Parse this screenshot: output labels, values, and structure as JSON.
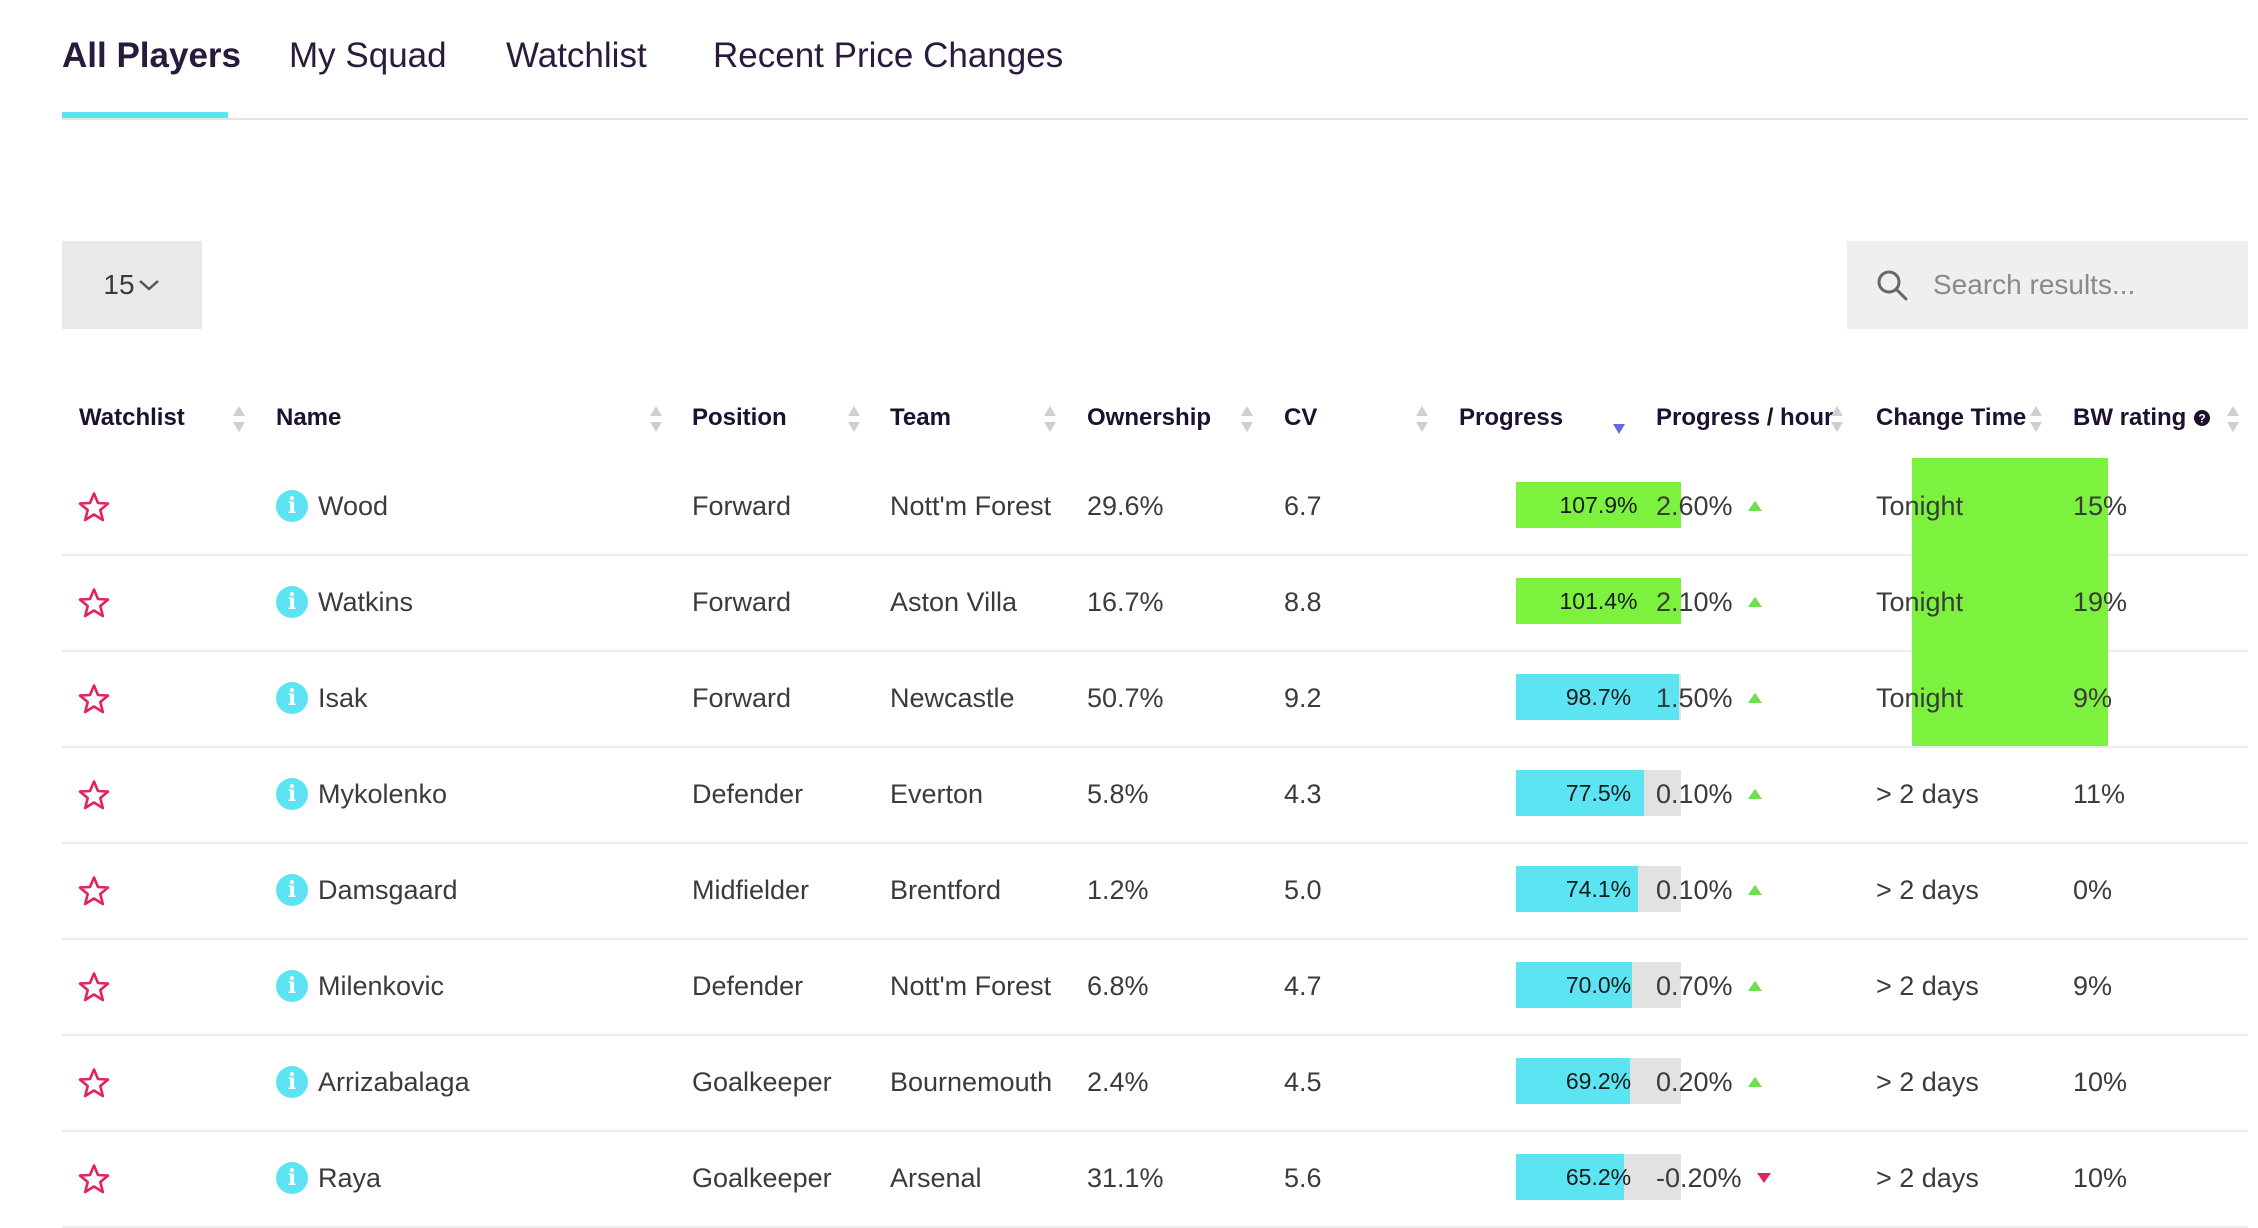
{
  "tabs": [
    {
      "label": "All Players",
      "active": true
    },
    {
      "label": "My Squad",
      "active": false
    },
    {
      "label": "Watchlist",
      "active": false
    },
    {
      "label": "Recent Price Changes",
      "active": false
    }
  ],
  "controls": {
    "per_page": "15",
    "search_placeholder": "Search results..."
  },
  "columns": [
    "Watchlist",
    "Name",
    "Position",
    "Team",
    "Ownership",
    "CV",
    "Progress",
    "Progress / hour",
    "Change Time",
    "BW rating"
  ],
  "sorted_column": "Progress",
  "sort_direction": "descending",
  "colors": {
    "accent": "#5ce4f2",
    "highlight_green": "#7cf23e",
    "star": "#e0245e",
    "up": "#6be04a",
    "down": "#e0245e",
    "sort_active": "#6a66e8"
  },
  "players": [
    {
      "name": "Wood",
      "position": "Forward",
      "team": "Nott'm Forest",
      "ownership": "29.6%",
      "cv": "6.7",
      "progress": 107.9,
      "progress_label": "107.9%",
      "progress_hour": "2.60%",
      "trend": "up",
      "change_time": "Tonight",
      "bw_rating": "15%"
    },
    {
      "name": "Watkins",
      "position": "Forward",
      "team": "Aston Villa",
      "ownership": "16.7%",
      "cv": "8.8",
      "progress": 101.4,
      "progress_label": "101.4%",
      "progress_hour": "2.10%",
      "trend": "up",
      "change_time": "Tonight",
      "bw_rating": "19%"
    },
    {
      "name": "Isak",
      "position": "Forward",
      "team": "Newcastle",
      "ownership": "50.7%",
      "cv": "9.2",
      "progress": 98.7,
      "progress_label": "98.7%",
      "progress_hour": "1.50%",
      "trend": "up",
      "change_time": "Tonight",
      "bw_rating": "9%"
    },
    {
      "name": "Mykolenko",
      "position": "Defender",
      "team": "Everton",
      "ownership": "5.8%",
      "cv": "4.3",
      "progress": 77.5,
      "progress_label": "77.5%",
      "progress_hour": "0.10%",
      "trend": "up",
      "change_time": "> 2 days",
      "bw_rating": "11%"
    },
    {
      "name": "Damsgaard",
      "position": "Midfielder",
      "team": "Brentford",
      "ownership": "1.2%",
      "cv": "5.0",
      "progress": 74.1,
      "progress_label": "74.1%",
      "progress_hour": "0.10%",
      "trend": "up",
      "change_time": "> 2 days",
      "bw_rating": "0%"
    },
    {
      "name": "Milenkovic",
      "position": "Defender",
      "team": "Nott'm Forest",
      "ownership": "6.8%",
      "cv": "4.7",
      "progress": 70.0,
      "progress_label": "70.0%",
      "progress_hour": "0.70%",
      "trend": "up",
      "change_time": "> 2 days",
      "bw_rating": "9%"
    },
    {
      "name": "Arrizabalaga",
      "position": "Goalkeeper",
      "team": "Bournemouth",
      "ownership": "2.4%",
      "cv": "4.5",
      "progress": 69.2,
      "progress_label": "69.2%",
      "progress_hour": "0.20%",
      "trend": "up",
      "change_time": "> 2 days",
      "bw_rating": "10%"
    },
    {
      "name": "Raya",
      "position": "Goalkeeper",
      "team": "Arsenal",
      "ownership": "31.1%",
      "cv": "5.6",
      "progress": 65.2,
      "progress_label": "65.2%",
      "progress_hour": "-0.20%",
      "trend": "down",
      "change_time": "> 2 days",
      "bw_rating": "10%"
    }
  ]
}
